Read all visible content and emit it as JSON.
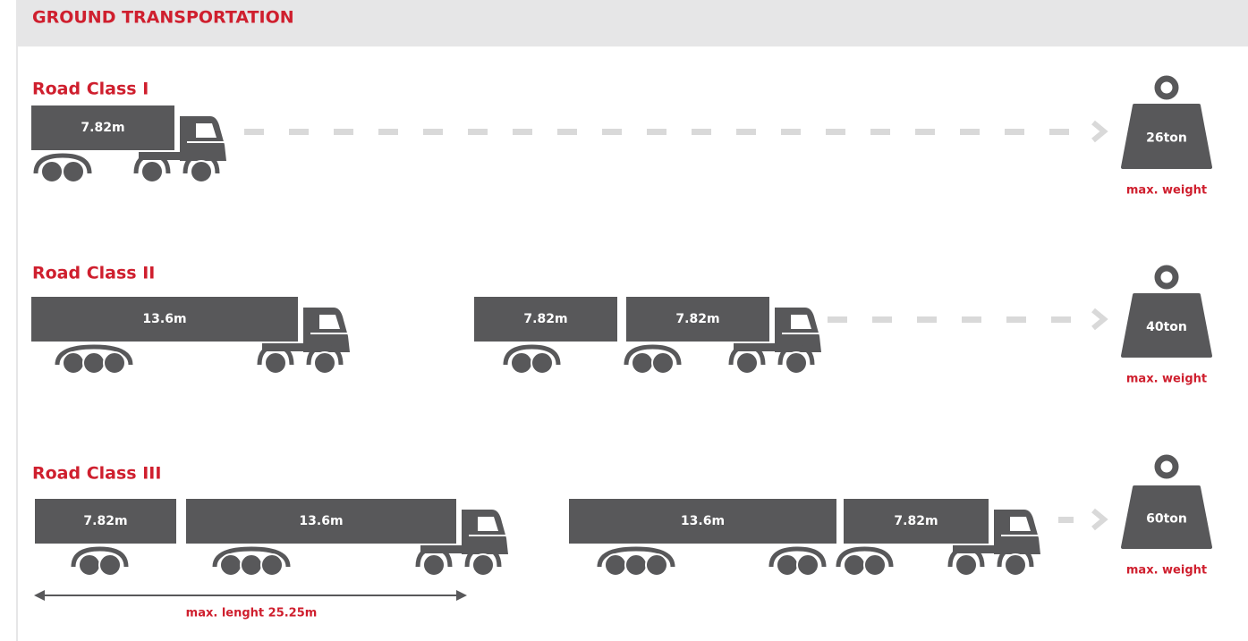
{
  "header": {
    "title": "GROUND TRANSPORTATION"
  },
  "road_classes": [
    {
      "title": "Road Class I",
      "vehicles": [
        {
          "trailers": [
            "7.82m"
          ]
        }
      ],
      "max_weight": "26ton",
      "weight_label": "max. weight"
    },
    {
      "title": "Road Class II",
      "vehicles": [
        {
          "trailers": [
            "13.6m"
          ]
        },
        {
          "trailers": [
            "7.82m",
            "7.82m"
          ]
        }
      ],
      "max_weight": "40ton",
      "weight_label": "max. weight"
    },
    {
      "title": "Road Class III",
      "vehicles": [
        {
          "trailers": [
            "7.82m",
            "13.6m"
          ]
        },
        {
          "trailers": [
            "13.6m",
            "7.82m"
          ]
        }
      ],
      "max_weight": "60ton",
      "weight_label": "max. weight",
      "length_annotation": "max. lenght 25.25m"
    }
  ]
}
